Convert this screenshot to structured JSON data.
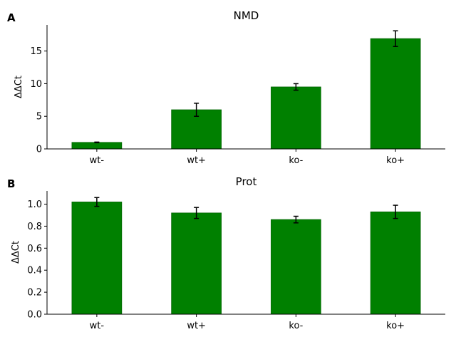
{
  "chart_data": [
    {
      "type": "bar",
      "panel_label": "A",
      "title": "NMD",
      "xlabel": "",
      "ylabel": "ΔΔCt",
      "categories": [
        "wt-",
        "wt+",
        "ko-",
        "ko+"
      ],
      "values": [
        1.0,
        6.0,
        9.5,
        16.9
      ],
      "errors": [
        0.05,
        1.0,
        0.5,
        1.2
      ],
      "ylim": [
        0,
        19
      ],
      "yticks": [
        0,
        5,
        10,
        15
      ],
      "ytick_labels": [
        "0",
        "5",
        "10",
        "15"
      ],
      "bar_color": "#008000",
      "grid": false
    },
    {
      "type": "bar",
      "panel_label": "B",
      "title": "Prot",
      "xlabel": "",
      "ylabel": "ΔΔCt",
      "categories": [
        "wt-",
        "wt+",
        "ko-",
        "ko+"
      ],
      "values": [
        1.02,
        0.92,
        0.86,
        0.93
      ],
      "errors": [
        0.04,
        0.05,
        0.03,
        0.06
      ],
      "ylim": [
        0,
        1.12
      ],
      "yticks": [
        0.0,
        0.2,
        0.4,
        0.6,
        0.8,
        1.0
      ],
      "ytick_labels": [
        "0.0",
        "0.2",
        "0.4",
        "0.6",
        "0.8",
        "1.0"
      ],
      "bar_color": "#008000",
      "grid": false
    }
  ]
}
